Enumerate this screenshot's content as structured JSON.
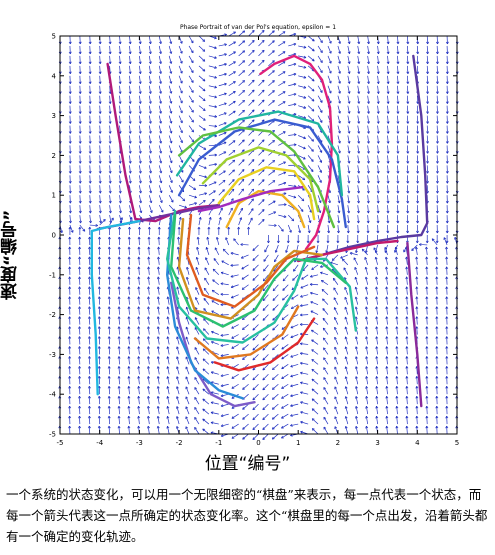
{
  "chart_data": {
    "type": "line",
    "title": "Phase Portrait of van der Pol's equation, epsilon = 1",
    "xlabel": "位置“编号”",
    "ylabel": "速度“编号”",
    "xlim": [
      -5,
      5
    ],
    "ylim": [
      -5,
      5
    ],
    "xticks": [
      "-5",
      "-4",
      "-3",
      "-2",
      "-1",
      "0",
      "1",
      "2",
      "3",
      "4",
      "5"
    ],
    "yticks": [
      "5",
      "4",
      "3",
      "2",
      "1",
      "0",
      "-1",
      "-2",
      "-3",
      "-4",
      "-5"
    ],
    "grid": false,
    "epsilon": 1,
    "series": [
      {
        "color": "#e0207a",
        "points": [
          [
            0.05,
            4.05
          ],
          [
            0.4,
            4.3
          ],
          [
            0.9,
            4.5
          ],
          [
            1.3,
            4.3
          ],
          [
            1.6,
            3.9
          ],
          [
            1.8,
            3.2
          ],
          [
            1.85,
            2.3
          ],
          [
            1.8,
            1.4
          ],
          [
            1.65,
            0.6
          ],
          [
            1.45,
            0.0
          ],
          [
            1.2,
            -0.35
          ]
        ]
      },
      {
        "color": "#b01a7a",
        "points": [
          [
            -3.8,
            4.3
          ],
          [
            -3.6,
            3.0
          ],
          [
            -3.35,
            1.5
          ],
          [
            -3.1,
            0.4
          ],
          [
            -2.6,
            0.35
          ],
          [
            -2.0,
            0.6
          ],
          [
            -1.5,
            0.7
          ],
          [
            -1.0,
            0.75
          ]
        ]
      },
      {
        "color": "#7030a0",
        "points": [
          [
            -4.05,
            0.15
          ],
          [
            -3.5,
            0.25
          ],
          [
            -3.0,
            0.35
          ],
          [
            -2.3,
            0.5
          ],
          [
            -1.6,
            0.65
          ],
          [
            -1.0,
            0.75
          ]
        ]
      },
      {
        "color": "#5a3aa0",
        "points": [
          [
            1.0,
            -0.65
          ],
          [
            1.6,
            -0.5
          ],
          [
            2.3,
            -0.3
          ],
          [
            3.0,
            -0.15
          ],
          [
            3.6,
            -0.05
          ],
          [
            4.1,
            0.0
          ],
          [
            4.25,
            0.3
          ],
          [
            4.2,
            1.5
          ],
          [
            4.1,
            3.0
          ],
          [
            3.9,
            4.5
          ]
        ]
      },
      {
        "color": "#c21a6b",
        "points": [
          [
            1.0,
            -0.65
          ],
          [
            1.6,
            -0.5
          ],
          [
            2.3,
            -0.35
          ],
          [
            3.0,
            -0.2
          ],
          [
            3.5,
            -0.15
          ]
        ]
      },
      {
        "color": "#8a2a9a",
        "points": [
          [
            3.75,
            -0.2
          ],
          [
            3.85,
            -1.5
          ],
          [
            4.0,
            -3.0
          ],
          [
            4.1,
            -4.3
          ]
        ]
      },
      {
        "color": "#22b8e0",
        "points": [
          [
            -4.05,
            -4.0
          ],
          [
            -4.1,
            -2.5
          ],
          [
            -4.2,
            -1.0
          ],
          [
            -4.2,
            0.1
          ],
          [
            -3.8,
            0.2
          ],
          [
            -3.0,
            0.35
          ]
        ]
      },
      {
        "color": "#7d5cc8",
        "points": [
          [
            -2.2,
            -1.2
          ],
          [
            -2.0,
            -2.2
          ],
          [
            -1.7,
            -3.2
          ],
          [
            -1.2,
            -4.0
          ],
          [
            -0.6,
            -4.3
          ],
          [
            -0.1,
            -4.2
          ]
        ]
      },
      {
        "color": "#2b8cd8",
        "points": [
          [
            -2.2,
            0.5
          ],
          [
            -2.3,
            -1.0
          ],
          [
            -2.1,
            -2.3
          ],
          [
            -1.6,
            -3.4
          ],
          [
            -1.0,
            -3.9
          ],
          [
            -0.4,
            -4.1
          ]
        ]
      },
      {
        "color": "#e02a2a",
        "points": [
          [
            -1.1,
            -3.2
          ],
          [
            -0.5,
            -3.4
          ],
          [
            0.3,
            -3.2
          ],
          [
            1.0,
            -2.7
          ],
          [
            1.4,
            -2.1
          ]
        ]
      },
      {
        "color": "#e07820",
        "points": [
          [
            -1.6,
            -2.6
          ],
          [
            -1.0,
            -3.1
          ],
          [
            -0.2,
            -3.0
          ],
          [
            0.6,
            -2.5
          ],
          [
            1.0,
            -1.8
          ]
        ]
      },
      {
        "color": "#3a5cd0",
        "points": [
          [
            -2.0,
            1.0
          ],
          [
            -1.5,
            1.9
          ],
          [
            -0.6,
            2.6
          ],
          [
            0.4,
            2.9
          ],
          [
            1.3,
            2.7
          ],
          [
            1.85,
            1.9
          ],
          [
            2.1,
            0.9
          ],
          [
            2.2,
            0.2
          ]
        ]
      },
      {
        "color": "#20b5a0",
        "points": [
          [
            -2.05,
            1.5
          ],
          [
            -1.5,
            2.3
          ],
          [
            -0.5,
            2.9
          ],
          [
            0.5,
            3.1
          ],
          [
            1.5,
            2.8
          ],
          [
            2.0,
            2.0
          ],
          [
            2.1,
            1.0
          ]
        ]
      },
      {
        "color": "#60c040",
        "points": [
          [
            -2.0,
            2.0
          ],
          [
            -1.4,
            2.5
          ],
          [
            -0.5,
            2.7
          ],
          [
            0.3,
            2.6
          ],
          [
            0.9,
            2.1
          ],
          [
            1.5,
            1.2
          ],
          [
            1.9,
            0.2
          ]
        ]
      },
      {
        "color": "#a0d030",
        "points": [
          [
            -1.4,
            1.3
          ],
          [
            -0.8,
            1.9
          ],
          [
            0.0,
            2.2
          ],
          [
            0.7,
            2.0
          ],
          [
            1.3,
            1.4
          ],
          [
            1.5,
            0.6
          ]
        ]
      },
      {
        "color": "#e8d020",
        "points": [
          [
            -1.0,
            0.8
          ],
          [
            -0.5,
            1.4
          ],
          [
            0.2,
            1.7
          ],
          [
            0.9,
            1.6
          ],
          [
            1.3,
            1.0
          ],
          [
            1.4,
            0.4
          ]
        ]
      },
      {
        "color": "#f0b020",
        "points": [
          [
            -0.8,
            0.2
          ],
          [
            -0.5,
            0.8
          ],
          [
            0.0,
            1.1
          ],
          [
            0.6,
            1.0
          ],
          [
            1.0,
            0.6
          ],
          [
            1.15,
            0.2
          ]
        ]
      },
      {
        "color": "#28c0a0",
        "points": [
          [
            -2.1,
            0.6
          ],
          [
            -2.3,
            -0.6
          ],
          [
            -2.0,
            -1.8
          ],
          [
            -1.3,
            -2.6
          ],
          [
            -0.4,
            -2.7
          ],
          [
            0.4,
            -2.2
          ],
          [
            0.9,
            -1.4
          ],
          [
            1.2,
            -0.6
          ],
          [
            1.7,
            -0.6
          ],
          [
            2.3,
            -1.3
          ],
          [
            2.45,
            -2.4
          ]
        ]
      },
      {
        "color": "#2cc070",
        "points": [
          [
            -2.1,
            0.5
          ],
          [
            -2.2,
            -0.8
          ],
          [
            -1.7,
            -1.9
          ],
          [
            -0.9,
            -2.3
          ],
          [
            -0.1,
            -1.9
          ],
          [
            0.4,
            -1.1
          ],
          [
            0.9,
            -0.6
          ],
          [
            1.6,
            -0.7
          ],
          [
            2.2,
            -1.2
          ]
        ]
      },
      {
        "color": "#d09020",
        "points": [
          [
            -1.9,
            0.4
          ],
          [
            -2.0,
            -0.8
          ],
          [
            -1.6,
            -1.9
          ],
          [
            -0.7,
            -2.1
          ],
          [
            0.0,
            -1.5
          ],
          [
            0.4,
            -0.8
          ],
          [
            0.9,
            -0.4
          ],
          [
            1.6,
            -0.5
          ]
        ]
      },
      {
        "color": "#e05c20",
        "points": [
          [
            -1.7,
            0.5
          ],
          [
            -1.8,
            -0.5
          ],
          [
            -1.4,
            -1.5
          ],
          [
            -0.6,
            -1.8
          ],
          [
            0.2,
            -1.2
          ],
          [
            0.7,
            -0.6
          ],
          [
            1.4,
            -0.3
          ]
        ]
      },
      {
        "color": "#a02bbf",
        "points": [
          [
            -1.5,
            0.6
          ],
          [
            -1.0,
            0.7
          ],
          [
            -0.4,
            0.9
          ],
          [
            0.3,
            1.1
          ],
          [
            1.1,
            1.2
          ]
        ]
      }
    ]
  },
  "caption": "一个系统的状态变化，可以用一个无限细密的“棋盘”来表示，每一点代表一个状态，而每一个箭头代表这一点所确定的状态变化率。这个“棋盘里的每一个点出发，沿着箭头都有一个确定的变化轨迹。"
}
